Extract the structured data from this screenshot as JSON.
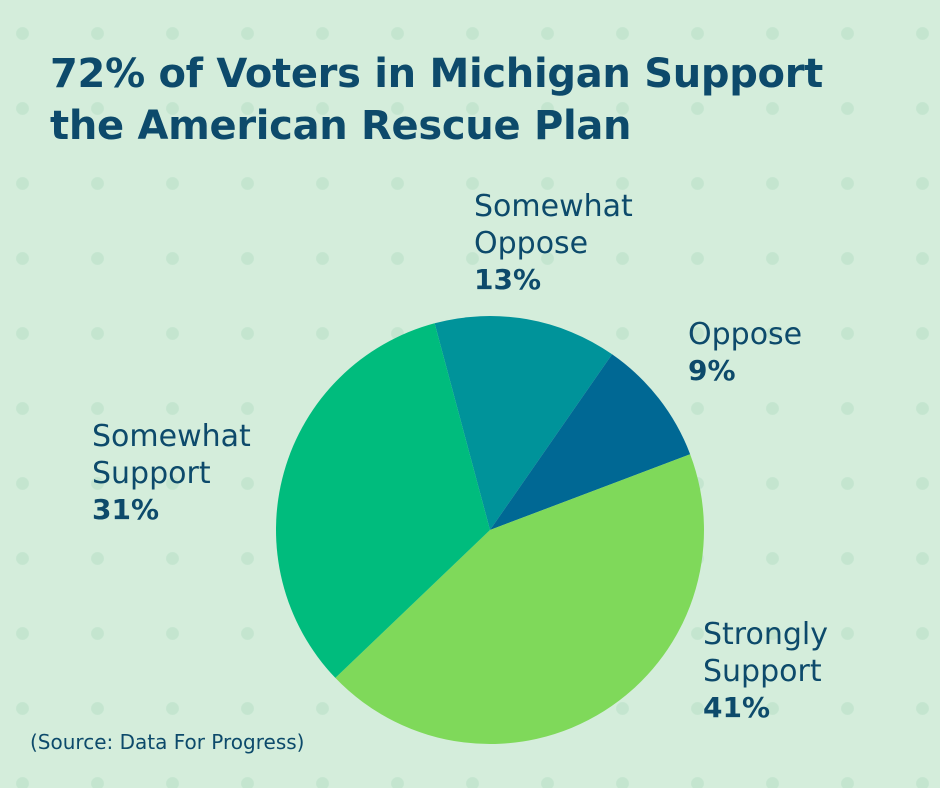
{
  "title_lines": [
    "72% of Voters in Michigan Support",
    "the American Rescue Plan"
  ],
  "source": "(Source: Data For Progress)",
  "chart_data": {
    "type": "pie",
    "title": "72% of Voters in Michigan Support the American Rescue Plan",
    "slices": [
      {
        "key": "somewhat-oppose",
        "name_lines": [
          "Somewhat",
          "Oppose"
        ],
        "value": 13,
        "value_label": "13%",
        "color": "#00939a"
      },
      {
        "key": "oppose",
        "name_lines": [
          "Oppose"
        ],
        "value": 9,
        "value_label": "9%",
        "color": "#006894"
      },
      {
        "key": "strongly-support",
        "name_lines": [
          "Strongly",
          "Support"
        ],
        "value": 41,
        "value_label": "41%",
        "color": "#7fd95a"
      },
      {
        "key": "somewhat-support",
        "name_lines": [
          "Somewhat",
          "Support"
        ],
        "value": 31,
        "value_label": "31%",
        "color": "#00bc7d"
      }
    ]
  }
}
